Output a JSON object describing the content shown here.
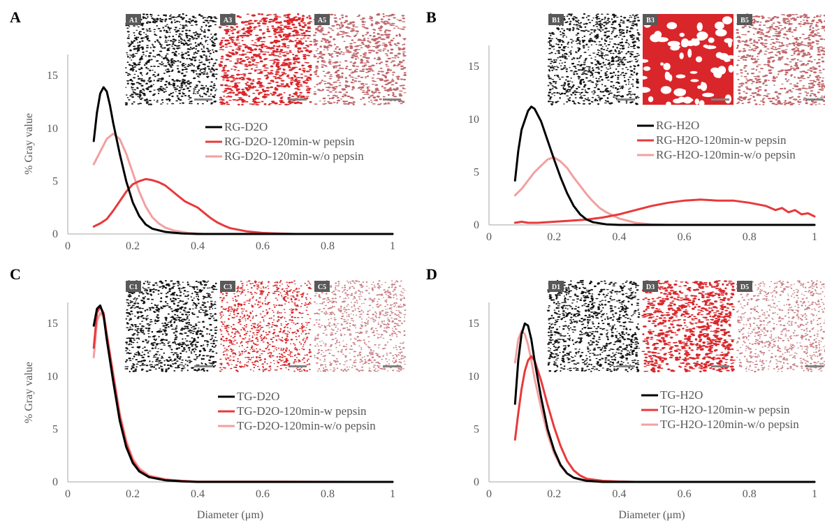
{
  "colors": {
    "dark": "#000000",
    "red": "#e8393b",
    "pink": "#f2a0a0",
    "axis": "#a6a6a6",
    "text": "#595959",
    "inset_label_bg": "#595959",
    "scale_bar": "#808080"
  },
  "chart_data": [
    {
      "panel": "A",
      "type": "line",
      "ylabel": "% Gray value",
      "xlabel": "",
      "xlim": [
        0,
        1
      ],
      "ylim": [
        0,
        17
      ],
      "xticks": [
        "0",
        "0.2",
        "0.4",
        "0.6",
        "0.8",
        "1"
      ],
      "yticks": [
        "0",
        "5",
        "10",
        "15"
      ],
      "legend_position": "center-right",
      "insets": [
        {
          "label": "A1",
          "style": "dark"
        },
        {
          "label": "A3",
          "style": "red"
        },
        {
          "label": "A5",
          "style": "pink"
        }
      ],
      "series": [
        {
          "name": "RG-D2O",
          "color": "dark",
          "points": [
            [
              0.08,
              8.8
            ],
            [
              0.09,
              11.5
            ],
            [
              0.1,
              13.3
            ],
            [
              0.11,
              13.9
            ],
            [
              0.12,
              13.5
            ],
            [
              0.13,
              12.2
            ],
            [
              0.14,
              10.5
            ],
            [
              0.16,
              7.6
            ],
            [
              0.18,
              5.0
            ],
            [
              0.2,
              3.0
            ],
            [
              0.22,
              1.7
            ],
            [
              0.24,
              0.9
            ],
            [
              0.26,
              0.5
            ],
            [
              0.3,
              0.2
            ],
            [
              0.35,
              0.05
            ],
            [
              0.4,
              0
            ],
            [
              1.0,
              0
            ]
          ]
        },
        {
          "name": "RG-D2O-120min-w pepsin",
          "color": "red",
          "points": [
            [
              0.08,
              0.7
            ],
            [
              0.1,
              1.0
            ],
            [
              0.12,
              1.4
            ],
            [
              0.14,
              2.2
            ],
            [
              0.16,
              3.1
            ],
            [
              0.18,
              4.0
            ],
            [
              0.2,
              4.7
            ],
            [
              0.22,
              5.0
            ],
            [
              0.24,
              5.2
            ],
            [
              0.26,
              5.1
            ],
            [
              0.28,
              4.9
            ],
            [
              0.3,
              4.6
            ],
            [
              0.32,
              4.1
            ],
            [
              0.34,
              3.6
            ],
            [
              0.36,
              3.1
            ],
            [
              0.38,
              2.8
            ],
            [
              0.4,
              2.5
            ],
            [
              0.42,
              2.0
            ],
            [
              0.44,
              1.5
            ],
            [
              0.46,
              1.1
            ],
            [
              0.48,
              0.8
            ],
            [
              0.5,
              0.55
            ],
            [
              0.55,
              0.25
            ],
            [
              0.6,
              0.1
            ],
            [
              0.65,
              0.04
            ],
            [
              0.7,
              0
            ],
            [
              1.0,
              0
            ]
          ]
        },
        {
          "name": "RG-D2O-120min-w/o pepsin",
          "color": "pink",
          "points": [
            [
              0.08,
              6.6
            ],
            [
              0.1,
              7.8
            ],
            [
              0.12,
              9.0
            ],
            [
              0.14,
              9.5
            ],
            [
              0.16,
              9.0
            ],
            [
              0.18,
              7.6
            ],
            [
              0.2,
              5.8
            ],
            [
              0.22,
              4.0
            ],
            [
              0.24,
              2.6
            ],
            [
              0.26,
              1.6
            ],
            [
              0.28,
              1.0
            ],
            [
              0.3,
              0.6
            ],
            [
              0.33,
              0.3
            ],
            [
              0.37,
              0.1
            ],
            [
              0.42,
              0
            ],
            [
              1.0,
              0
            ]
          ]
        }
      ]
    },
    {
      "panel": "B",
      "type": "line",
      "ylabel": "",
      "xlabel": "",
      "xlim": [
        0,
        1
      ],
      "ylim": [
        0,
        17
      ],
      "xticks": [
        "0",
        "0.2",
        "0.4",
        "0.6",
        "0.8",
        "1"
      ],
      "yticks": [
        "0",
        "5",
        "10",
        "15"
      ],
      "legend_position": "center-right",
      "insets": [
        {
          "label": "B1",
          "style": "dark"
        },
        {
          "label": "B3",
          "style": "red-coarse"
        },
        {
          "label": "B5",
          "style": "pink"
        }
      ],
      "series": [
        {
          "name": "RG-H2O",
          "color": "dark",
          "points": [
            [
              0.08,
              4.2
            ],
            [
              0.09,
              7.0
            ],
            [
              0.1,
              9.0
            ],
            [
              0.12,
              10.8
            ],
            [
              0.13,
              11.2
            ],
            [
              0.14,
              11.0
            ],
            [
              0.16,
              9.8
            ],
            [
              0.18,
              8.0
            ],
            [
              0.2,
              6.2
            ],
            [
              0.22,
              4.5
            ],
            [
              0.24,
              3.0
            ],
            [
              0.26,
              1.8
            ],
            [
              0.28,
              1.0
            ],
            [
              0.3,
              0.5
            ],
            [
              0.32,
              0.25
            ],
            [
              0.36,
              0.05
            ],
            [
              0.4,
              0
            ],
            [
              1.0,
              0
            ]
          ]
        },
        {
          "name": "RG-H2O-120min-w pepsin",
          "color": "red",
          "points": [
            [
              0.08,
              0.2
            ],
            [
              0.1,
              0.3
            ],
            [
              0.12,
              0.2
            ],
            [
              0.15,
              0.2
            ],
            [
              0.2,
              0.3
            ],
            [
              0.25,
              0.4
            ],
            [
              0.3,
              0.5
            ],
            [
              0.35,
              0.7
            ],
            [
              0.4,
              1.0
            ],
            [
              0.45,
              1.4
            ],
            [
              0.5,
              1.8
            ],
            [
              0.55,
              2.1
            ],
            [
              0.6,
              2.3
            ],
            [
              0.65,
              2.4
            ],
            [
              0.7,
              2.3
            ],
            [
              0.75,
              2.3
            ],
            [
              0.8,
              2.1
            ],
            [
              0.85,
              1.8
            ],
            [
              0.88,
              1.4
            ],
            [
              0.9,
              1.6
            ],
            [
              0.92,
              1.2
            ],
            [
              0.94,
              1.4
            ],
            [
              0.96,
              1.0
            ],
            [
              0.98,
              1.1
            ],
            [
              1.0,
              0.8
            ]
          ]
        },
        {
          "name": "RG-H2O-120min-w/o pepsin",
          "color": "pink",
          "points": [
            [
              0.08,
              2.8
            ],
            [
              0.1,
              3.4
            ],
            [
              0.12,
              4.2
            ],
            [
              0.14,
              5.0
            ],
            [
              0.16,
              5.6
            ],
            [
              0.18,
              6.2
            ],
            [
              0.2,
              6.4
            ],
            [
              0.22,
              6.0
            ],
            [
              0.24,
              5.4
            ],
            [
              0.26,
              4.5
            ],
            [
              0.28,
              3.7
            ],
            [
              0.3,
              2.9
            ],
            [
              0.32,
              2.2
            ],
            [
              0.34,
              1.6
            ],
            [
              0.36,
              1.2
            ],
            [
              0.4,
              0.6
            ],
            [
              0.45,
              0.2
            ],
            [
              0.5,
              0.05
            ],
            [
              0.55,
              0
            ],
            [
              1.0,
              0
            ]
          ]
        }
      ]
    },
    {
      "panel": "C",
      "type": "line",
      "ylabel": "% Gray value",
      "xlabel": "Diameter (μm)",
      "xlim": [
        0,
        1
      ],
      "ylim": [
        0,
        17
      ],
      "xticks": [
        "0",
        "0.2",
        "0.4",
        "0.6",
        "0.8",
        "1"
      ],
      "yticks": [
        "0",
        "5",
        "10",
        "15"
      ],
      "legend_position": "center-right",
      "insets": [
        {
          "label": "C1",
          "style": "dark"
        },
        {
          "label": "C3",
          "style": "red-fine"
        },
        {
          "label": "C5",
          "style": "pink-fine"
        }
      ],
      "series": [
        {
          "name": "TG-D2O",
          "color": "dark",
          "points": [
            [
              0.08,
              14.8
            ],
            [
              0.09,
              16.4
            ],
            [
              0.1,
              16.7
            ],
            [
              0.11,
              15.8
            ],
            [
              0.12,
              13.5
            ],
            [
              0.14,
              9.5
            ],
            [
              0.16,
              5.8
            ],
            [
              0.18,
              3.3
            ],
            [
              0.2,
              1.8
            ],
            [
              0.22,
              1.0
            ],
            [
              0.25,
              0.45
            ],
            [
              0.3,
              0.15
            ],
            [
              0.35,
              0.05
            ],
            [
              0.4,
              0
            ],
            [
              1.0,
              0
            ]
          ]
        },
        {
          "name": "TG-D2O-120min-w pepsin",
          "color": "red",
          "points": [
            [
              0.08,
              12.7
            ],
            [
              0.09,
              16.0
            ],
            [
              0.1,
              16.6
            ],
            [
              0.11,
              16.0
            ],
            [
              0.12,
              14.0
            ],
            [
              0.14,
              10.0
            ],
            [
              0.16,
              6.2
            ],
            [
              0.18,
              3.6
            ],
            [
              0.2,
              2.0
            ],
            [
              0.22,
              1.1
            ],
            [
              0.25,
              0.5
            ],
            [
              0.3,
              0.2
            ],
            [
              0.35,
              0.1
            ],
            [
              0.4,
              0.02
            ],
            [
              1.0,
              0
            ]
          ]
        },
        {
          "name": "TG-D2O-120min-w/o pepsin",
          "color": "pink",
          "points": [
            [
              0.08,
              11.8
            ],
            [
              0.09,
              15.2
            ],
            [
              0.1,
              16.0
            ],
            [
              0.11,
              15.6
            ],
            [
              0.12,
              14.0
            ],
            [
              0.14,
              10.3
            ],
            [
              0.16,
              6.5
            ],
            [
              0.18,
              3.9
            ],
            [
              0.2,
              2.2
            ],
            [
              0.22,
              1.3
            ],
            [
              0.25,
              0.6
            ],
            [
              0.3,
              0.25
            ],
            [
              0.35,
              0.1
            ],
            [
              0.4,
              0.02
            ],
            [
              1.0,
              0
            ]
          ]
        }
      ]
    },
    {
      "panel": "D",
      "type": "line",
      "ylabel": "",
      "xlabel": "Diameter (μm)",
      "xlim": [
        0,
        1
      ],
      "ylim": [
        0,
        17
      ],
      "xticks": [
        "0",
        "0.2",
        "0.4",
        "0.6",
        "0.8",
        "1"
      ],
      "yticks": [
        "0",
        "5",
        "10",
        "15"
      ],
      "legend_position": "center-right",
      "insets": [
        {
          "label": "D1",
          "style": "dark"
        },
        {
          "label": "D3",
          "style": "red"
        },
        {
          "label": "D5",
          "style": "pink-fine"
        }
      ],
      "series": [
        {
          "name": "TG-H2O",
          "color": "dark",
          "points": [
            [
              0.08,
              7.4
            ],
            [
              0.09,
              11.5
            ],
            [
              0.1,
              14.0
            ],
            [
              0.11,
              15.0
            ],
            [
              0.12,
              14.8
            ],
            [
              0.13,
              13.5
            ],
            [
              0.14,
              11.5
            ],
            [
              0.16,
              8.0
            ],
            [
              0.18,
              5.0
            ],
            [
              0.2,
              3.0
            ],
            [
              0.22,
              1.6
            ],
            [
              0.24,
              0.8
            ],
            [
              0.26,
              0.4
            ],
            [
              0.3,
              0.1
            ],
            [
              0.35,
              0
            ],
            [
              1.0,
              0
            ]
          ]
        },
        {
          "name": "TG-H2O-120min-w pepsin",
          "color": "red",
          "points": [
            [
              0.08,
              4.0
            ],
            [
              0.09,
              6.5
            ],
            [
              0.1,
              8.8
            ],
            [
              0.11,
              10.5
            ],
            [
              0.12,
              11.5
            ],
            [
              0.13,
              11.9
            ],
            [
              0.14,
              11.5
            ],
            [
              0.16,
              9.6
            ],
            [
              0.18,
              7.3
            ],
            [
              0.2,
              5.2
            ],
            [
              0.22,
              3.4
            ],
            [
              0.24,
              2.0
            ],
            [
              0.26,
              1.1
            ],
            [
              0.28,
              0.6
            ],
            [
              0.3,
              0.3
            ],
            [
              0.35,
              0.1
            ],
            [
              0.4,
              0.03
            ],
            [
              0.45,
              0
            ],
            [
              1.0,
              0
            ]
          ]
        },
        {
          "name": "TG-H2O-120min-w/o pepsin",
          "color": "pink",
          "points": [
            [
              0.08,
              11.3
            ],
            [
              0.09,
              13.5
            ],
            [
              0.1,
              14.3
            ],
            [
              0.11,
              14.0
            ],
            [
              0.12,
              13.0
            ],
            [
              0.13,
              11.5
            ],
            [
              0.14,
              9.8
            ],
            [
              0.16,
              7.0
            ],
            [
              0.18,
              4.5
            ],
            [
              0.2,
              2.7
            ],
            [
              0.22,
              1.5
            ],
            [
              0.24,
              0.8
            ],
            [
              0.26,
              0.4
            ],
            [
              0.3,
              0.1
            ],
            [
              0.35,
              0
            ],
            [
              1.0,
              0
            ]
          ]
        }
      ]
    }
  ]
}
